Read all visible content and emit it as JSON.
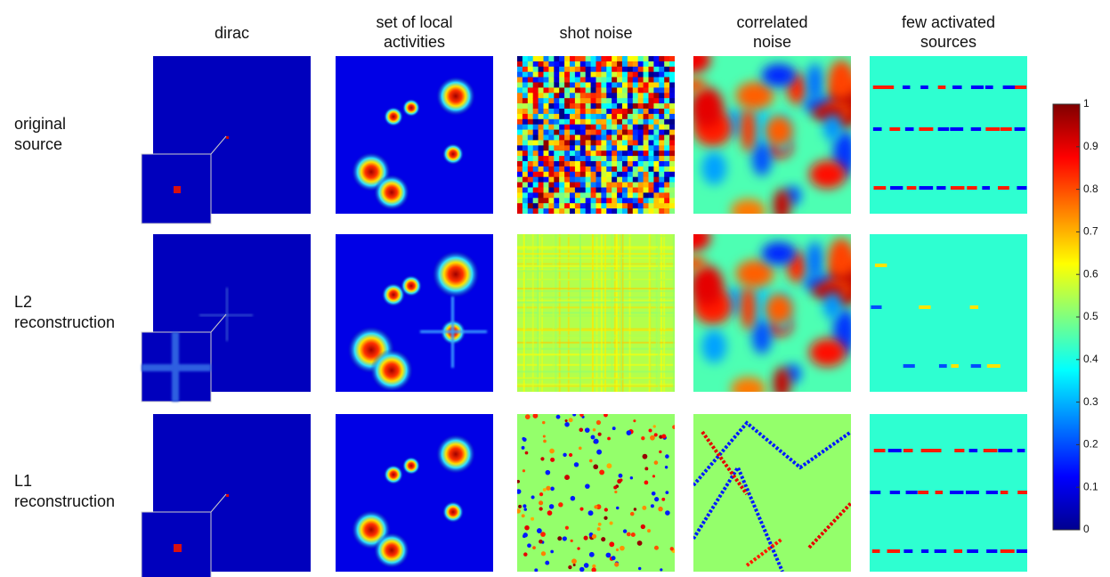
{
  "columns": [
    {
      "title": [
        "dirac"
      ]
    },
    {
      "title": [
        "set of local",
        "activities"
      ]
    },
    {
      "title": [
        "shot noise"
      ]
    },
    {
      "title": [
        "correlated",
        "noise"
      ]
    },
    {
      "title": [
        "few activated",
        "sources"
      ]
    }
  ],
  "rows": [
    {
      "label": [
        "original",
        "source"
      ]
    },
    {
      "label": [
        "L2",
        "reconstruction"
      ]
    },
    {
      "label": [
        "L1",
        "reconstruction"
      ]
    }
  ],
  "colorbar": {
    "ticks": [
      0,
      0.1,
      0.2,
      0.3,
      0.4,
      0.5,
      0.6,
      0.7,
      0.8,
      0.9,
      1
    ]
  }
}
